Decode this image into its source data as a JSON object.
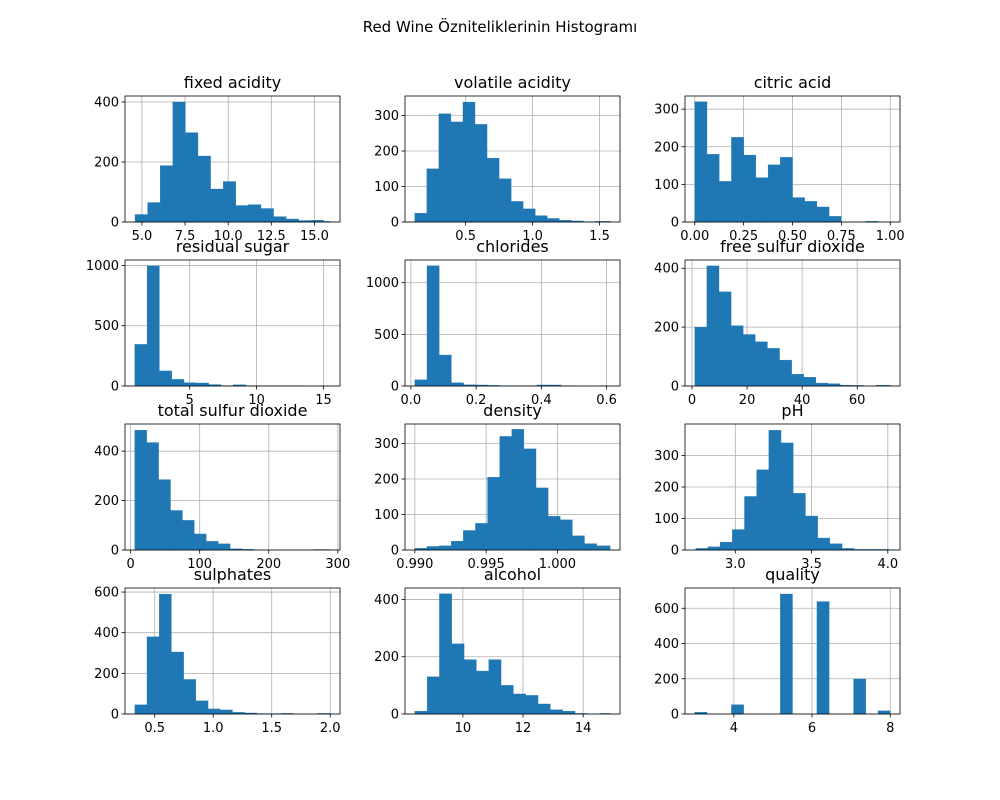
{
  "figure": {
    "suptitle": "Red Wine Özniteliklerinin Histogramı"
  },
  "colors": {
    "bar": "#1f77b4",
    "bar_edge": "#1f77b4",
    "grid": "#b0b0b0"
  },
  "chart_data": [
    {
      "type": "bar",
      "title": "fixed acidity",
      "bin_edges": [
        4.6,
        5.33,
        6.06,
        6.79,
        7.52,
        8.25,
        8.98,
        9.71,
        10.44,
        11.17,
        11.9,
        12.63,
        13.36,
        14.09,
        14.82,
        15.55,
        15.9
      ],
      "values": [
        25,
        65,
        188,
        400,
        298,
        220,
        110,
        135,
        55,
        58,
        45,
        18,
        10,
        5,
        6,
        2
      ],
      "xlim": [
        4.02,
        16.48
      ],
      "ylim": [
        0,
        420
      ],
      "xticks": [
        5.0,
        7.5,
        10.0,
        12.5,
        15.0
      ],
      "xtick_labels": [
        "5.0",
        "7.5",
        "10.0",
        "12.5",
        "15.0"
      ],
      "yticks": [
        0,
        200,
        400
      ],
      "ytick_labels": [
        "0",
        "200",
        "400"
      ],
      "grid": true
    },
    {
      "type": "bar",
      "title": "volatile acidity",
      "bin_edges": [
        0.12,
        0.21,
        0.3,
        0.39,
        0.48,
        0.57,
        0.66,
        0.75,
        0.84,
        0.93,
        1.02,
        1.11,
        1.2,
        1.29,
        1.38,
        1.47,
        1.58
      ],
      "values": [
        25,
        150,
        305,
        282,
        338,
        275,
        180,
        122,
        58,
        37,
        18,
        10,
        5,
        3,
        1,
        2
      ],
      "xlim": [
        0.047,
        1.653
      ],
      "ylim": [
        0,
        355
      ],
      "xticks": [
        0.5,
        1.0,
        1.5
      ],
      "xtick_labels": [
        "0.5",
        "1.0",
        "1.5"
      ],
      "yticks": [
        0,
        100,
        200,
        300
      ],
      "ytick_labels": [
        "0",
        "100",
        "200",
        "300"
      ],
      "grid": true
    },
    {
      "type": "bar",
      "title": "citric acid",
      "bin_edges": [
        0,
        0.0625,
        0.125,
        0.1875,
        0.25,
        0.3125,
        0.375,
        0.4375,
        0.5,
        0.5625,
        0.625,
        0.6875,
        0.75,
        0.8125,
        0.875,
        0.9375,
        1.0
      ],
      "values": [
        320,
        180,
        108,
        225,
        178,
        118,
        152,
        172,
        65,
        55,
        40,
        15,
        0,
        0,
        2,
        0
      ],
      "xlim": [
        -0.05,
        1.05
      ],
      "ylim": [
        0,
        335
      ],
      "xticks": [
        0,
        0.25,
        0.5,
        0.75,
        1.0
      ],
      "xtick_labels": [
        "0.00",
        "0.25",
        "0.50",
        "0.75",
        "1.00"
      ],
      "yticks": [
        0,
        100,
        200,
        300
      ],
      "ytick_labels": [
        "0",
        "100",
        "200",
        "300"
      ],
      "grid": true
    },
    {
      "type": "bar",
      "title": "residual sugar",
      "bin_edges": [
        0.9,
        1.82,
        2.74,
        3.66,
        4.58,
        5.5,
        6.42,
        7.34,
        8.26,
        9.18,
        10.1,
        11.02,
        11.94,
        12.86,
        13.78,
        14.7,
        15.5
      ],
      "values": [
        345,
        995,
        125,
        55,
        28,
        25,
        12,
        3,
        10,
        3,
        2,
        2,
        1,
        1,
        0,
        1
      ],
      "xlim": [
        0.17,
        16.23
      ],
      "ylim": [
        0,
        1045
      ],
      "xticks": [
        5,
        10,
        15
      ],
      "xtick_labels": [
        "5",
        "10",
        "15"
      ],
      "yticks": [
        0,
        500,
        1000
      ],
      "ytick_labels": [
        "0",
        "500",
        "1000"
      ],
      "grid": true
    },
    {
      "type": "bar",
      "title": "chlorides",
      "bin_edges": [
        0.012,
        0.0494,
        0.0868,
        0.1242,
        0.1616,
        0.199,
        0.2364,
        0.2738,
        0.3112,
        0.3486,
        0.386,
        0.4234,
        0.4608,
        0.4982,
        0.5356,
        0.573,
        0.611
      ],
      "values": [
        60,
        1165,
        300,
        32,
        12,
        10,
        6,
        3,
        2,
        2,
        10,
        10,
        2,
        0,
        0,
        2
      ],
      "xlim": [
        -0.018,
        0.641
      ],
      "ylim": [
        0,
        1220
      ],
      "xticks": [
        0.0,
        0.2,
        0.4,
        0.6
      ],
      "xtick_labels": [
        "0.0",
        "0.2",
        "0.4",
        "0.6"
      ],
      "yticks": [
        0,
        500,
        1000
      ],
      "ytick_labels": [
        "0",
        "500",
        "1000"
      ],
      "grid": true
    },
    {
      "type": "bar",
      "title": "free sulfur dioxide",
      "bin_edges": [
        1,
        5.4,
        9.8,
        14.2,
        18.6,
        23,
        27.4,
        31.8,
        36.2,
        40.6,
        45,
        49.4,
        53.8,
        58.2,
        62.6,
        67,
        72
      ],
      "values": [
        200,
        408,
        320,
        205,
        175,
        150,
        128,
        88,
        40,
        30,
        10,
        8,
        3,
        2,
        0,
        3
      ],
      "xlim": [
        -2.55,
        75.55
      ],
      "ylim": [
        0,
        428
      ],
      "xticks": [
        0,
        20,
        40,
        60
      ],
      "xtick_labels": [
        "0",
        "20",
        "40",
        "60"
      ],
      "yticks": [
        0,
        200,
        400
      ],
      "ytick_labels": [
        "0",
        "200",
        "400"
      ],
      "grid": true
    },
    {
      "type": "bar",
      "title": "total sulfur dioxide",
      "bin_edges": [
        6,
        23.25,
        40.5,
        57.75,
        75,
        92.25,
        109.5,
        126.75,
        144,
        161.25,
        178.5,
        195.75,
        213,
        230.25,
        247.5,
        264.75,
        289
      ],
      "values": [
        485,
        435,
        285,
        160,
        120,
        65,
        35,
        25,
        5,
        3,
        0,
        0,
        0,
        0,
        0,
        2
      ],
      "xlim": [
        -8.15,
        303.15
      ],
      "ylim": [
        0,
        510
      ],
      "xticks": [
        0,
        100,
        200,
        300
      ],
      "xtick_labels": [
        "0",
        "100",
        "200",
        "300"
      ],
      "yticks": [
        0,
        200,
        400
      ],
      "ytick_labels": [
        "0",
        "200",
        "400"
      ],
      "grid": true
    },
    {
      "type": "bar",
      "title": "density",
      "bin_edges": [
        0.99,
        0.99085,
        0.9917,
        0.99255,
        0.9934,
        0.99425,
        0.9951,
        0.99595,
        0.9968,
        0.99765,
        0.9985,
        0.99935,
        1.0002,
        1.00105,
        1.0019,
        1.00275,
        1.0037
      ],
      "values": [
        5,
        10,
        12,
        25,
        55,
        75,
        205,
        320,
        340,
        285,
        175,
        95,
        85,
        40,
        18,
        12
      ],
      "xlim": [
        0.98931,
        1.00439
      ],
      "ylim": [
        0,
        355
      ],
      "xticks": [
        0.99,
        0.995,
        1.0
      ],
      "xtick_labels": [
        "0.990",
        "0.995",
        "1.000"
      ],
      "yticks": [
        0,
        100,
        200,
        300
      ],
      "ytick_labels": [
        "0",
        "100",
        "200",
        "300"
      ],
      "grid": true
    },
    {
      "type": "bar",
      "title": "pH",
      "bin_edges": [
        2.74,
        2.82,
        2.9,
        2.98,
        3.06,
        3.14,
        3.22,
        3.3,
        3.38,
        3.46,
        3.54,
        3.62,
        3.7,
        3.78,
        3.86,
        3.94,
        4.01
      ],
      "values": [
        5,
        10,
        25,
        65,
        170,
        255,
        380,
        340,
        180,
        108,
        38,
        20,
        5,
        2,
        2,
        2
      ],
      "xlim": [
        2.67,
        4.08
      ],
      "ylim": [
        0,
        400
      ],
      "xticks": [
        3.0,
        3.5,
        4.0
      ],
      "xtick_labels": [
        "3.0",
        "3.5",
        "4.0"
      ],
      "yticks": [
        0,
        100,
        200,
        300
      ],
      "ytick_labels": [
        "0",
        "100",
        "200",
        "300"
      ],
      "grid": true
    },
    {
      "type": "bar",
      "title": "sulphates",
      "bin_edges": [
        0.33,
        0.4344,
        0.5388,
        0.6431,
        0.7475,
        0.8519,
        0.9563,
        1.0606,
        1.165,
        1.2694,
        1.3738,
        1.4781,
        1.5825,
        1.6869,
        1.7913,
        1.8956,
        2.0
      ],
      "values": [
        45,
        380,
        590,
        305,
        170,
        65,
        25,
        20,
        8,
        5,
        2,
        2,
        3,
        0,
        0,
        3
      ],
      "xlim": [
        0.2465,
        2.0835
      ],
      "ylim": [
        0,
        620
      ],
      "xticks": [
        0.5,
        1.0,
        1.5,
        2.0
      ],
      "xtick_labels": [
        "0.5",
        "1.0",
        "1.5",
        "2.0"
      ],
      "yticks": [
        0,
        200,
        400,
        600
      ],
      "ytick_labels": [
        "0",
        "200",
        "400",
        "600"
      ],
      "grid": true
    },
    {
      "type": "bar",
      "title": "alcohol",
      "bin_edges": [
        8.4,
        8.81,
        9.22,
        9.63,
        10.04,
        10.45,
        10.86,
        11.27,
        11.68,
        12.09,
        12.5,
        12.91,
        13.32,
        13.73,
        14.14,
        14.55,
        14.9
      ],
      "values": [
        10,
        130,
        420,
        245,
        190,
        150,
        190,
        100,
        70,
        65,
        35,
        15,
        10,
        2,
        0,
        2
      ],
      "xlim": [
        8.075,
        15.225
      ],
      "ylim": [
        0,
        440
      ],
      "xticks": [
        10,
        12,
        14
      ],
      "xtick_labels": [
        "10",
        "12",
        "14"
      ],
      "yticks": [
        0,
        200,
        400
      ],
      "ytick_labels": [
        "0",
        "200",
        "400"
      ],
      "grid": true
    },
    {
      "type": "bar",
      "title": "quality",
      "bin_edges": [
        3,
        3.3125,
        3.625,
        3.9375,
        4.25,
        4.5625,
        4.875,
        5.1875,
        5.5,
        5.8125,
        6.125,
        6.4375,
        6.75,
        7.0625,
        7.375,
        7.6875,
        8.0
      ],
      "values": [
        10,
        0,
        0,
        53,
        0,
        0,
        0,
        681,
        0,
        0,
        638,
        0,
        0,
        199,
        0,
        18
      ],
      "xlim": [
        2.75,
        8.25
      ],
      "ylim": [
        0,
        715
      ],
      "xticks": [
        4,
        6,
        8
      ],
      "xtick_labels": [
        "4",
        "6",
        "8"
      ],
      "yticks": [
        0,
        200,
        400,
        600
      ],
      "ytick_labels": [
        "0",
        "200",
        "400",
        "600"
      ],
      "grid": true
    }
  ]
}
